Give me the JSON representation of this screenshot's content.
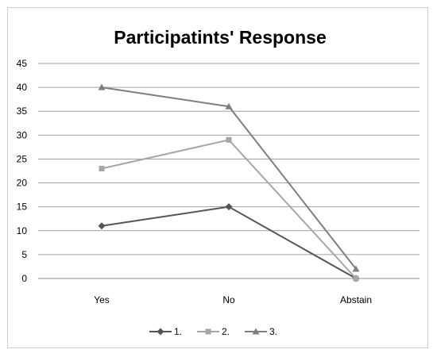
{
  "chart_data": {
    "type": "line",
    "title": "Participatints' Response",
    "xlabel": "",
    "ylabel": "",
    "categories": [
      "Yes",
      "No",
      "Abstain"
    ],
    "ylim": [
      0,
      45
    ],
    "yticks": [
      0,
      5,
      10,
      15,
      20,
      25,
      30,
      35,
      40,
      45
    ],
    "grid": true,
    "legend": "bottom",
    "series": [
      {
        "name": "1.",
        "values": [
          11,
          15,
          0
        ],
        "color": "#555555",
        "marker": "diamond"
      },
      {
        "name": "2.",
        "values": [
          23,
          29,
          0
        ],
        "color": "#a6a6a6",
        "marker": "square"
      },
      {
        "name": "3.",
        "values": [
          40,
          36,
          2
        ],
        "color": "#7f7f7f",
        "marker": "triangle"
      }
    ]
  }
}
